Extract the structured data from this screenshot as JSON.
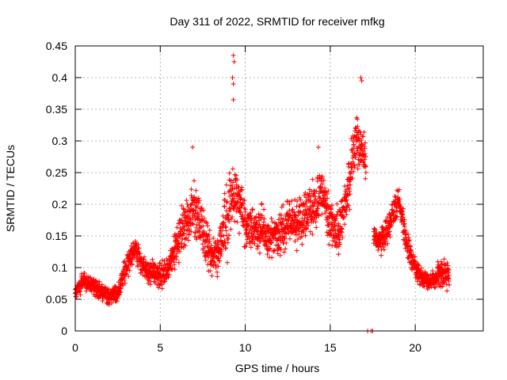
{
  "chart_data": {
    "type": "scatter",
    "title": "Day 311 of 2022, SRMTID for receiver mfkg",
    "xlabel": "GPS time / hours",
    "ylabel": "SRMTID / TECUs",
    "xlim": [
      0,
      24
    ],
    "ylim": [
      0,
      0.45
    ],
    "grid": true,
    "marker": "+",
    "marker_color": "#ff0000",
    "x_ticks": [
      0,
      5,
      10,
      15,
      20
    ],
    "x_tick_labels": [
      "0",
      "5",
      "10",
      "15",
      "20"
    ],
    "y_ticks": [
      0,
      0.05,
      0.1,
      0.15,
      0.2,
      0.25,
      0.3,
      0.35,
      0.4,
      0.45
    ],
    "y_tick_labels": [
      "0",
      "0.05",
      "0.1",
      "0.15",
      "0.2",
      "0.25",
      "0.3",
      "0.35",
      "0.4",
      "0.45"
    ],
    "series": [
      {
        "name": "SRMTID",
        "color": "#ff0000",
        "envelope_hours": [
          0,
          0.5,
          1,
          1.5,
          2,
          2.5,
          3,
          3.5,
          4,
          4.5,
          5,
          5.5,
          6,
          6.5,
          7,
          7.5,
          8,
          8.5,
          9,
          9.5,
          10,
          10.5,
          11,
          11.5,
          12,
          12.5,
          13,
          13.5,
          14,
          14.5,
          15,
          15.5,
          16,
          16.5,
          17,
          17.5,
          18,
          18.5,
          19,
          19.5,
          20,
          20.5,
          21,
          21.5,
          22
        ],
        "envelope_median": [
          0.06,
          0.08,
          0.07,
          0.06,
          0.055,
          0.06,
          0.1,
          0.13,
          0.1,
          0.09,
          0.085,
          0.1,
          0.14,
          0.17,
          0.19,
          0.16,
          0.12,
          0.13,
          0.19,
          0.22,
          0.17,
          0.16,
          0.16,
          0.14,
          0.15,
          0.17,
          0.17,
          0.18,
          0.2,
          0.22,
          0.17,
          0.16,
          0.22,
          0.3,
          0.28,
          0.15,
          0.14,
          0.17,
          0.21,
          0.14,
          0.1,
          0.08,
          0.08,
          0.09,
          0.09
        ],
        "envelope_spread": [
          0.02,
          0.02,
          0.02,
          0.02,
          0.02,
          0.02,
          0.03,
          0.03,
          0.03,
          0.03,
          0.03,
          0.03,
          0.04,
          0.06,
          0.06,
          0.05,
          0.04,
          0.05,
          0.08,
          0.06,
          0.05,
          0.05,
          0.05,
          0.04,
          0.05,
          0.05,
          0.05,
          0.05,
          0.06,
          0.05,
          0.05,
          0.05,
          0.05,
          0.06,
          0.05,
          0.02,
          0.03,
          0.04,
          0.03,
          0.03,
          0.02,
          0.02,
          0.02,
          0.03,
          0.03
        ],
        "peaks": [
          {
            "x": 9.3,
            "y": 0.435
          },
          {
            "x": 9.35,
            "y": 0.425
          },
          {
            "x": 9.25,
            "y": 0.4
          },
          {
            "x": 9.3,
            "y": 0.39
          },
          {
            "x": 9.3,
            "y": 0.365
          },
          {
            "x": 16.8,
            "y": 0.4
          },
          {
            "x": 16.85,
            "y": 0.395
          },
          {
            "x": 6.9,
            "y": 0.29
          },
          {
            "x": 14.3,
            "y": 0.29
          }
        ],
        "zero_points": [
          {
            "x": 17.2,
            "y": 0
          },
          {
            "x": 17.4,
            "y": 0
          },
          {
            "x": 17.5,
            "y": 0
          }
        ],
        "approx_point_count": 2600
      }
    ]
  }
}
